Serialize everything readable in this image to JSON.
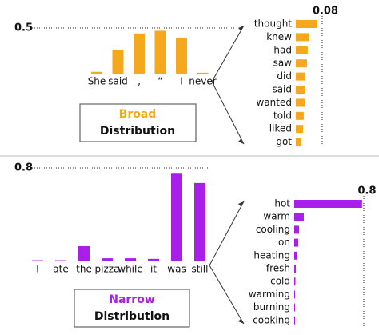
{
  "chart_data": [
    {
      "type": "bar",
      "orientation": "vertical",
      "categories": [
        "She",
        "said",
        ",",
        "“",
        "I",
        "never"
      ],
      "values": [
        0.02,
        0.26,
        0.44,
        0.47,
        0.39,
        0.01
      ],
      "color": "#f5a81c",
      "ylim": [
        0,
        0.5
      ],
      "yticks": [
        0.5
      ]
    },
    {
      "type": "bar",
      "orientation": "horizontal",
      "categories": [
        "thought",
        "knew",
        "had",
        "saw",
        "did",
        "said",
        "wanted",
        "told",
        "liked",
        "got"
      ],
      "values": [
        0.065,
        0.041,
        0.036,
        0.034,
        0.029,
        0.029,
        0.027,
        0.024,
        0.022,
        0.017
      ],
      "color": "#f5a81c",
      "xlim": [
        0,
        0.08
      ],
      "xticks": [
        0.08
      ]
    },
    {
      "type": "bar",
      "orientation": "vertical",
      "categories": [
        "I",
        "ate",
        "the",
        "pizza",
        "while",
        "it",
        "was",
        "still"
      ],
      "values": [
        0.003,
        0.003,
        0.124,
        0.02,
        0.02,
        0.015,
        0.75,
        0.67
      ],
      "color": "#a91ee8",
      "ylim": [
        0,
        0.8
      ],
      "yticks": [
        0.8
      ]
    },
    {
      "type": "bar",
      "orientation": "horizontal",
      "categories": [
        "hot",
        "warm",
        "cooling",
        "on",
        "heating",
        "fresh",
        "cold",
        "warming",
        "burning",
        "cooking"
      ],
      "values": [
        0.78,
        0.11,
        0.055,
        0.046,
        0.037,
        0.018,
        0.014,
        0.009,
        0.007,
        0.005
      ],
      "color": "#a91ee8",
      "xlim": [
        0,
        0.8
      ],
      "xticks": [
        0.8
      ]
    }
  ],
  "panels": [
    {
      "highlight": "Broad",
      "label": "Distribution",
      "color": "#f5a81c"
    },
    {
      "highlight": "Narrow",
      "label": "Distribution",
      "color": "#a91ee8"
    }
  ]
}
